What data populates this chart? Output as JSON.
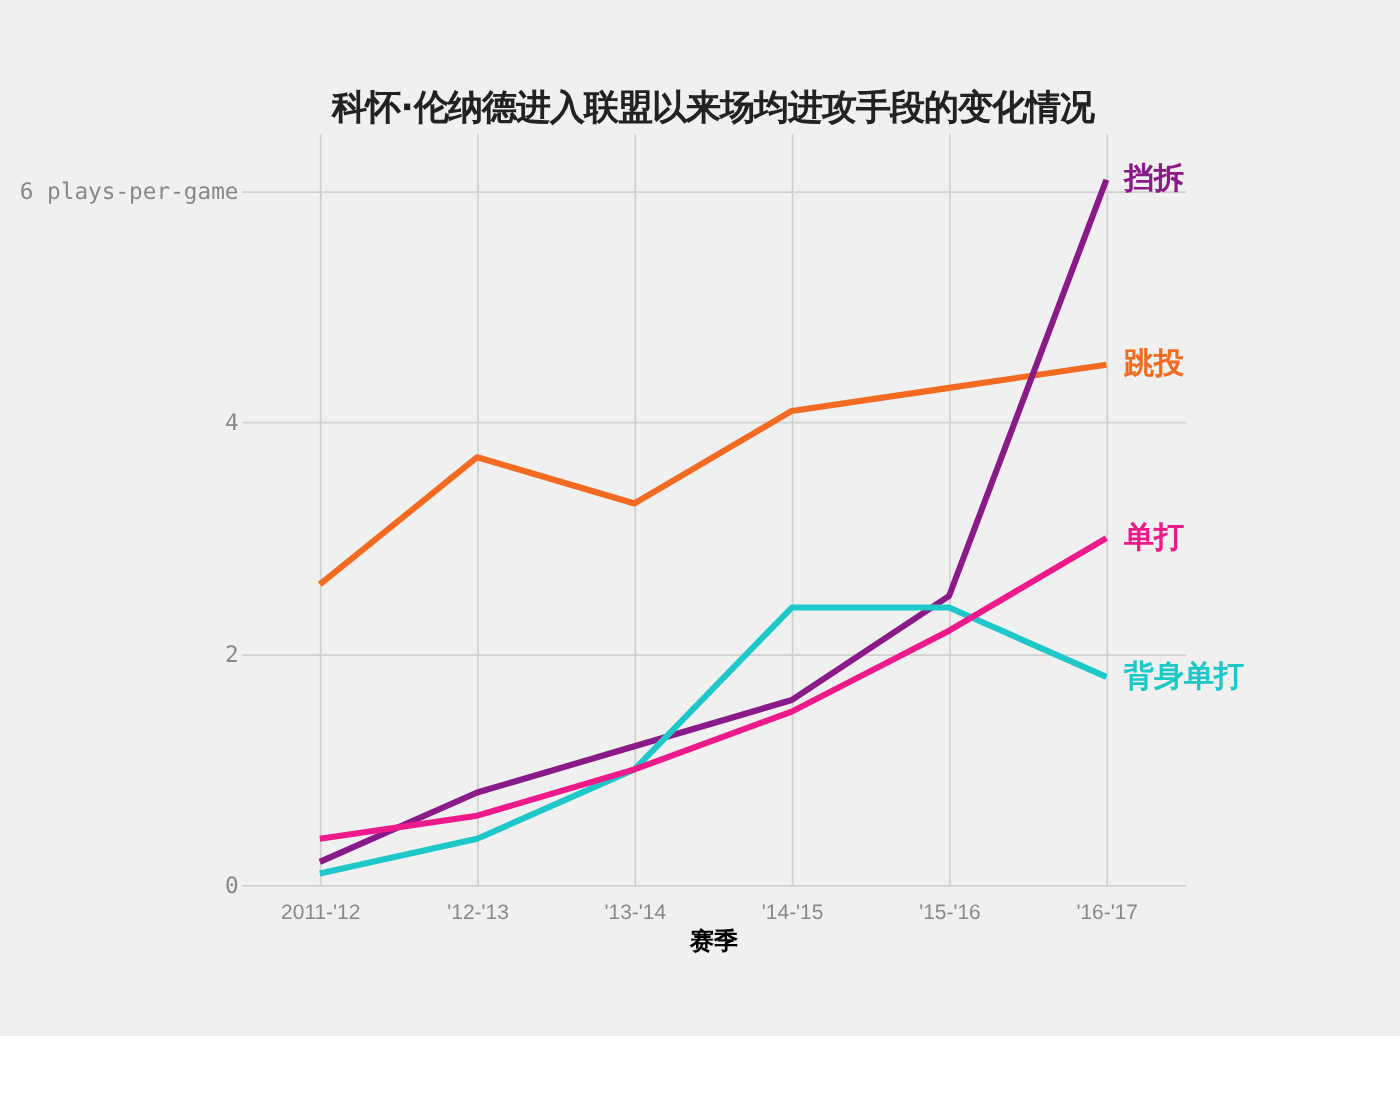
{
  "chart_data": {
    "type": "line",
    "title": "科怀·伦纳德进入联盟以来场均进攻手段的变化情况",
    "xlabel": "赛季",
    "categories": [
      "2011-'12",
      "'12-'13",
      "'13-'14",
      "'14-'15",
      "'15-'16",
      "'16-'17"
    ],
    "series": [
      {
        "name": "跳投",
        "color": "#f26b21",
        "values": [
          2.6,
          3.7,
          3.3,
          4.1,
          4.3,
          4.5
        ]
      },
      {
        "name": "挡拆",
        "color": "#8b1a89",
        "values": [
          0.2,
          0.8,
          1.2,
          1.6,
          2.5,
          6.1
        ]
      },
      {
        "name": "背身单打",
        "color": "#1fc8c8",
        "values": [
          0.1,
          0.4,
          1.0,
          2.4,
          2.4,
          1.8
        ]
      },
      {
        "name": "单打",
        "color": "#ee1a8c",
        "values": [
          0.4,
          0.6,
          1.0,
          1.5,
          2.2,
          3.0
        ]
      }
    ],
    "ylim": [
      0,
      6.5
    ],
    "yticks": [
      0,
      2,
      4,
      {
        "value": 6,
        "label": "6 plays-per-game"
      }
    ],
    "grid": true,
    "marker": "none",
    "line_style": "solid"
  }
}
